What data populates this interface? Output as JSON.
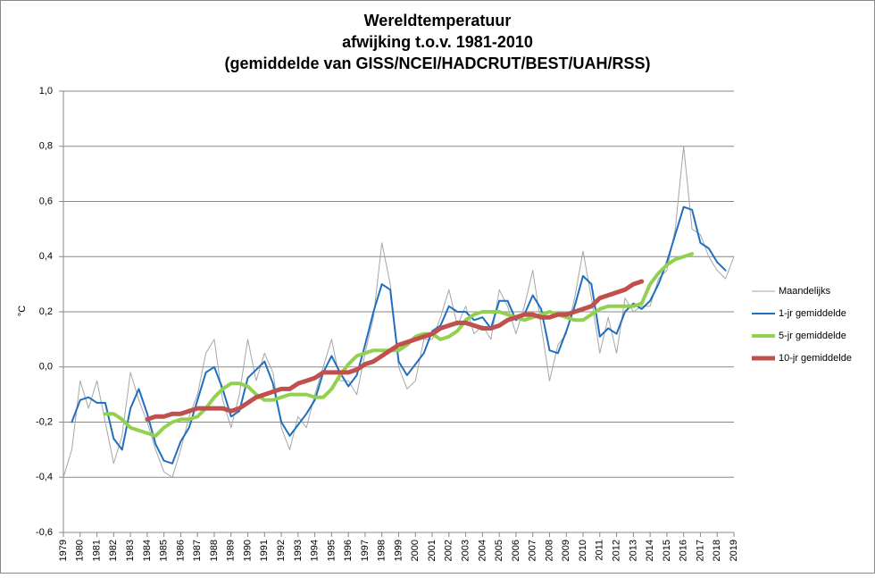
{
  "chart_data": {
    "type": "line",
    "title": [
      "Wereldtemperatuur",
      "afwijking t.o.v. 1981-2010",
      "(gemiddelde van GISS/NCEI/HADCRUT/BEST/UAH/RSS)"
    ],
    "y_label": "°C",
    "x": [
      1979,
      1979.5,
      1980,
      1980.5,
      1981,
      1981.5,
      1982,
      1982.5,
      1983,
      1983.5,
      1984,
      1984.5,
      1985,
      1985.5,
      1986,
      1986.5,
      1987,
      1987.5,
      1988,
      1988.5,
      1989,
      1989.5,
      1990,
      1990.5,
      1991,
      1991.5,
      1992,
      1992.5,
      1993,
      1993.5,
      1994,
      1994.5,
      1995,
      1995.5,
      1996,
      1996.5,
      1997,
      1997.5,
      1998,
      1998.5,
      1999,
      1999.5,
      2000,
      2000.5,
      2001,
      2001.5,
      2002,
      2002.5,
      2003,
      2003.5,
      2004,
      2004.5,
      2005,
      2005.5,
      2006,
      2006.5,
      2007,
      2007.5,
      2008,
      2008.5,
      2009,
      2009.5,
      2010,
      2010.5,
      2011,
      2011.5,
      2012,
      2012.5,
      2013,
      2013.5,
      2014,
      2014.5,
      2015,
      2015.5,
      2016,
      2016.5,
      2017,
      2017.5,
      2018,
      2018.5,
      2019
    ],
    "series": [
      {
        "name": "Maandelijks",
        "color": "#a6a6a6",
        "width": 1,
        "values": [
          -0.4,
          -0.3,
          -0.05,
          -0.15,
          -0.05,
          -0.2,
          -0.35,
          -0.25,
          -0.02,
          -0.12,
          -0.2,
          -0.3,
          -0.38,
          -0.4,
          -0.3,
          -0.18,
          -0.1,
          0.05,
          0.1,
          -0.12,
          -0.22,
          -0.1,
          0.1,
          -0.05,
          0.05,
          -0.02,
          -0.22,
          -0.3,
          -0.18,
          -0.22,
          -0.1,
          0.0,
          0.1,
          -0.05,
          -0.05,
          -0.1,
          0.05,
          0.18,
          0.45,
          0.3,
          0.0,
          -0.08,
          -0.05,
          0.1,
          0.1,
          0.18,
          0.28,
          0.15,
          0.22,
          0.12,
          0.15,
          0.1,
          0.28,
          0.22,
          0.12,
          0.22,
          0.35,
          0.15,
          -0.05,
          0.08,
          0.12,
          0.25,
          0.42,
          0.25,
          0.05,
          0.18,
          0.05,
          0.25,
          0.2,
          0.22,
          0.22,
          0.32,
          0.35,
          0.5,
          0.8,
          0.5,
          0.48,
          0.4,
          0.35,
          0.32,
          0.4
        ]
      },
      {
        "name": "1-jr gemiddelde",
        "color": "#1f6fbf",
        "width": 2,
        "values": [
          null,
          -0.2,
          -0.12,
          -0.11,
          -0.13,
          -0.13,
          -0.26,
          -0.3,
          -0.15,
          -0.08,
          -0.17,
          -0.28,
          -0.34,
          -0.35,
          -0.27,
          -0.22,
          -0.12,
          -0.02,
          0.0,
          -0.08,
          -0.18,
          -0.16,
          -0.04,
          -0.01,
          0.02,
          -0.06,
          -0.2,
          -0.25,
          -0.21,
          -0.17,
          -0.12,
          -0.02,
          0.04,
          -0.02,
          -0.07,
          -0.03,
          0.08,
          0.2,
          0.3,
          0.28,
          0.02,
          -0.03,
          0.01,
          0.05,
          0.13,
          0.15,
          0.22,
          0.2,
          0.2,
          0.17,
          0.18,
          0.14,
          0.24,
          0.24,
          0.17,
          0.19,
          0.26,
          0.21,
          0.06,
          0.05,
          0.13,
          0.22,
          0.33,
          0.3,
          0.11,
          0.14,
          0.12,
          0.2,
          0.23,
          0.21,
          0.24,
          0.3,
          0.38,
          0.48,
          0.58,
          0.57,
          0.45,
          0.43,
          0.38,
          0.35,
          null
        ]
      },
      {
        "name": "5-jr gemiddelde",
        "color": "#92d050",
        "width": 4,
        "values": [
          null,
          null,
          null,
          null,
          null,
          -0.17,
          -0.17,
          -0.19,
          -0.22,
          -0.23,
          -0.24,
          -0.25,
          -0.22,
          -0.2,
          -0.19,
          -0.19,
          -0.18,
          -0.15,
          -0.11,
          -0.08,
          -0.06,
          -0.06,
          -0.07,
          -0.1,
          -0.12,
          -0.12,
          -0.11,
          -0.1,
          -0.1,
          -0.1,
          -0.11,
          -0.11,
          -0.08,
          -0.03,
          0.01,
          0.04,
          0.05,
          0.06,
          0.06,
          0.06,
          0.06,
          0.08,
          0.11,
          0.12,
          0.12,
          0.1,
          0.11,
          0.13,
          0.17,
          0.19,
          0.2,
          0.2,
          0.2,
          0.19,
          0.18,
          0.17,
          0.18,
          0.19,
          0.2,
          0.19,
          0.18,
          0.17,
          0.17,
          0.19,
          0.21,
          0.22,
          0.22,
          0.22,
          0.22,
          0.23,
          0.3,
          0.34,
          0.37,
          0.39,
          0.4,
          0.41,
          null,
          null,
          null,
          null,
          null
        ]
      },
      {
        "name": "10-jr gemiddelde",
        "color": "#c0504d",
        "width": 5,
        "values": [
          null,
          null,
          null,
          null,
          null,
          null,
          null,
          null,
          null,
          null,
          -0.19,
          -0.18,
          -0.18,
          -0.17,
          -0.17,
          -0.16,
          -0.15,
          -0.15,
          -0.15,
          -0.15,
          -0.16,
          -0.15,
          -0.13,
          -0.11,
          -0.1,
          -0.09,
          -0.08,
          -0.08,
          -0.06,
          -0.05,
          -0.04,
          -0.02,
          -0.02,
          -0.02,
          -0.02,
          -0.01,
          0.01,
          0.02,
          0.04,
          0.06,
          0.08,
          0.09,
          0.1,
          0.11,
          0.12,
          0.14,
          0.15,
          0.16,
          0.16,
          0.15,
          0.14,
          0.14,
          0.15,
          0.17,
          0.18,
          0.19,
          0.19,
          0.18,
          0.18,
          0.19,
          0.19,
          0.2,
          0.21,
          0.22,
          0.25,
          0.26,
          0.27,
          0.28,
          0.3,
          0.31,
          null,
          null,
          null,
          null,
          null,
          null,
          null,
          null,
          null,
          null,
          null
        ]
      }
    ],
    "xlim": [
      1979,
      2019
    ],
    "xticks": [
      1979,
      1980,
      1981,
      1982,
      1983,
      1984,
      1985,
      1986,
      1987,
      1988,
      1989,
      1990,
      1991,
      1992,
      1993,
      1994,
      1995,
      1996,
      1997,
      1998,
      1999,
      2000,
      2001,
      2002,
      2003,
      2004,
      2005,
      2006,
      2007,
      2008,
      2009,
      2010,
      2011,
      2012,
      2013,
      2014,
      2015,
      2016,
      2017,
      2018,
      2019
    ],
    "ylim": [
      -0.6,
      1.0
    ],
    "yticks": [
      {
        "value": -0.6,
        "label": "-0,6"
      },
      {
        "value": -0.4,
        "label": "-0,4"
      },
      {
        "value": -0.2,
        "label": "-0,2"
      },
      {
        "value": 0,
        "label": "0,0"
      },
      {
        "value": 0.2,
        "label": "0,2"
      },
      {
        "value": 0.4,
        "label": "0,4"
      },
      {
        "value": 0.6,
        "label": "0,6"
      },
      {
        "value": 0.8,
        "label": "0,8"
      },
      {
        "value": 1.0,
        "label": "1,0"
      }
    ],
    "grid": true,
    "legend": "right"
  }
}
